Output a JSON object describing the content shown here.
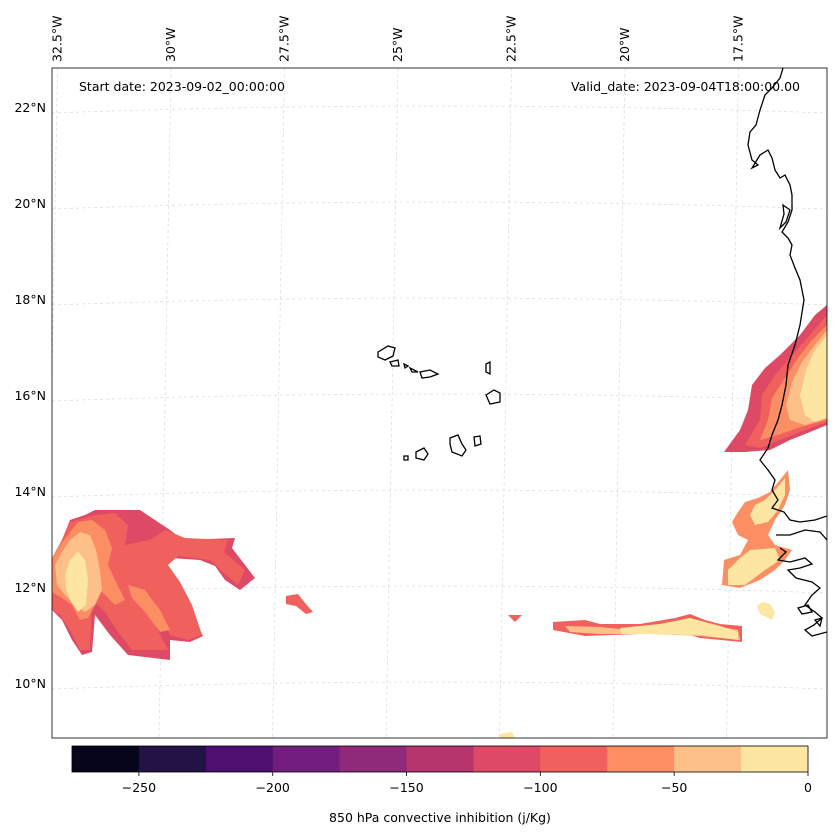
{
  "chart_data": {
    "type": "heatmap",
    "title": "",
    "annotations": {
      "start_date": "Start date: 2023-09-02_00:00:00",
      "valid_date": "Valid_date: 2023-09-04T18:00:00.00"
    },
    "longitude_labels": [
      "32.5°W",
      "30°W",
      "27.5°W",
      "25°W",
      "22.5°W",
      "20°W",
      "17.5°W"
    ],
    "longitudes": [
      -32.5,
      -30,
      -27.5,
      -25,
      -22.5,
      -20,
      -17.5
    ],
    "latitude_labels": [
      "22°N",
      "20°N",
      "18°N",
      "16°N",
      "14°N",
      "12°N",
      "10°N"
    ],
    "latitudes": [
      22,
      20,
      18,
      16,
      14,
      12,
      10
    ],
    "map_extent": {
      "lon": [
        -33,
        -15.3
      ],
      "lat": [
        8.9,
        22.8
      ]
    },
    "grid": true,
    "colorbar": {
      "label": "850 hPa convective inhibition (j/Kg)",
      "levels": [
        -275,
        -250,
        -225,
        -200,
        -175,
        -150,
        -125,
        -100,
        -75,
        -50,
        -25,
        0
      ],
      "tick_values": [
        -250,
        -200,
        -150,
        -100,
        -50,
        0
      ],
      "tick_labels": [
        "−250",
        "−200",
        "−150",
        "−100",
        "−50",
        "0"
      ],
      "colors": [
        "#06051c",
        "#221245",
        "#4e0f71",
        "#731e7e",
        "#8f2979",
        "#b5356c",
        "#de4a66",
        "#f0605d",
        "#fb8e62",
        "#fdc088",
        "#fde6a2"
      ]
    }
  }
}
